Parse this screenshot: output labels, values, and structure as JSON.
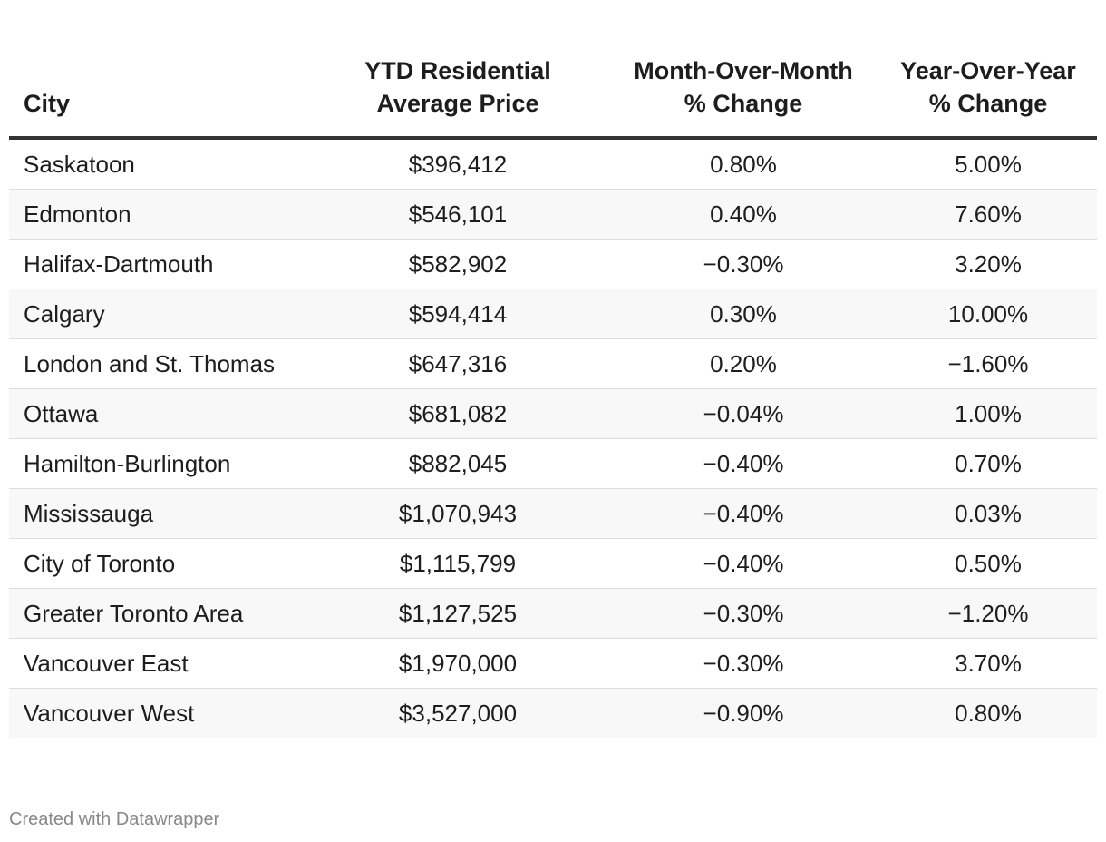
{
  "chart_data": {
    "type": "table",
    "columns": [
      "City",
      "YTD Residential Average Price",
      "Month-Over-Month % Change",
      "Year-Over-Year % Change"
    ],
    "rows": [
      [
        "Saskatoon",
        "$396,412",
        "0.80%",
        "5.00%"
      ],
      [
        "Edmonton",
        "$546,101",
        "0.40%",
        "7.60%"
      ],
      [
        "Halifax-Dartmouth",
        "$582,902",
        "−0.30%",
        "3.20%"
      ],
      [
        "Calgary",
        "$594,414",
        "0.30%",
        "10.00%"
      ],
      [
        "London and St. Thomas",
        "$647,316",
        "0.20%",
        "−1.60%"
      ],
      [
        "Ottawa",
        "$681,082",
        "−0.04%",
        "1.00%"
      ],
      [
        "Hamilton-Burlington",
        "$882,045",
        "−0.40%",
        "0.70%"
      ],
      [
        "Mississauga",
        "$1,070,943",
        "−0.40%",
        "0.03%"
      ],
      [
        "City of Toronto",
        "$1,115,799",
        "−0.40%",
        "0.50%"
      ],
      [
        "Greater Toronto Area",
        "$1,127,525",
        "−0.30%",
        "−1.20%"
      ],
      [
        "Vancouver East",
        "$1,970,000",
        "−0.30%",
        "3.70%"
      ],
      [
        "Vancouver West",
        "$3,527,000",
        "−0.90%",
        "0.80%"
      ]
    ]
  },
  "footer": {
    "credit": "Created with Datawrapper"
  },
  "colors": {
    "text": "#1d1d1d",
    "header_rule": "#333333",
    "row_stripe": "#f8f8f8",
    "row_divider": "#dddddd",
    "footer_text": "#888888"
  }
}
